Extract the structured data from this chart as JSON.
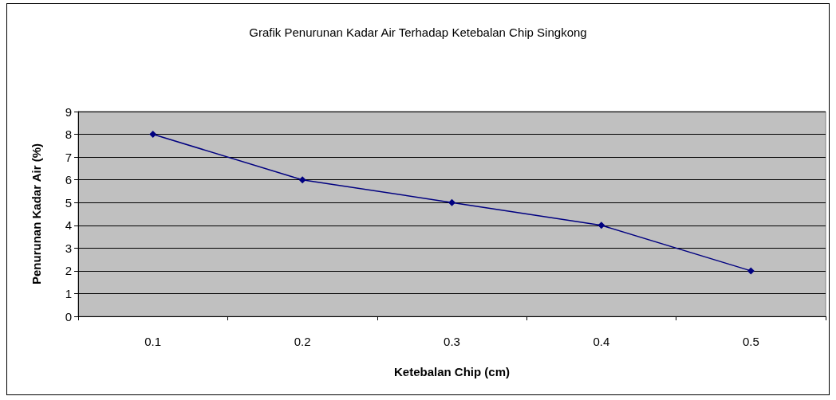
{
  "chart_data": {
    "type": "line",
    "title": "Grafik Penurunan Kadar Air Terhadap Ketebalan Chip Singkong",
    "xlabel": "Ketebalan Chip (cm)",
    "ylabel": "Penurunan Kadar Air (%)",
    "categories": [
      "0.1",
      "0.2",
      "0.3",
      "0.4",
      "0.5"
    ],
    "series": [
      {
        "color": "#000080",
        "values": [
          8,
          6,
          5,
          4,
          2
        ]
      }
    ],
    "ylim": [
      0,
      9
    ],
    "yticks": [
      0,
      1,
      2,
      3,
      4,
      5,
      6,
      7,
      8,
      9
    ],
    "grid": "y",
    "marker": "diamond",
    "line_style": "solid"
  }
}
